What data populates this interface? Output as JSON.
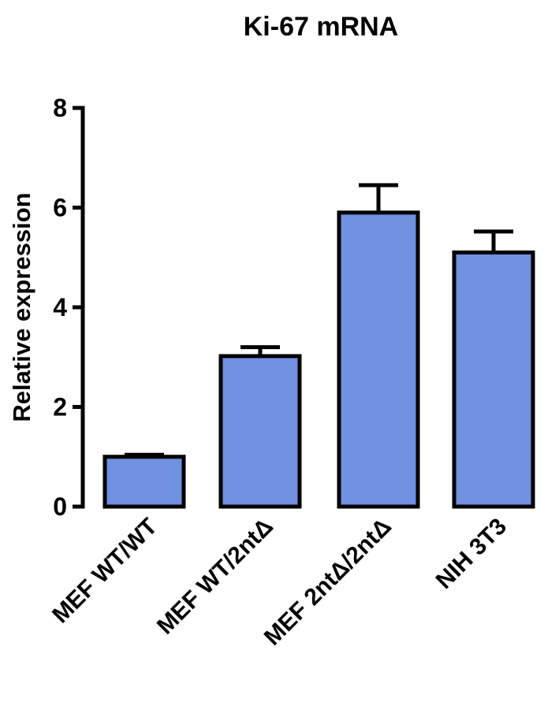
{
  "chart_data": {
    "type": "bar",
    "title": "Ki-67 mRNA",
    "xlabel": "",
    "ylabel": "Relative expression",
    "ylim": [
      0,
      8
    ],
    "yticks": [
      0,
      2,
      4,
      6,
      8
    ],
    "grid": false,
    "legend": "none",
    "categories": [
      "MEF WT/WT",
      "MEF WT/2ntΔ",
      "MEF 2ntΔ/2ntΔ",
      "NIH 3T3"
    ],
    "values": [
      1.0,
      3.02,
      5.9,
      5.1
    ],
    "errors": [
      0.04,
      0.18,
      0.55,
      0.42
    ],
    "colors": {
      "bar": "#7090e0",
      "stroke": "#000000"
    }
  }
}
